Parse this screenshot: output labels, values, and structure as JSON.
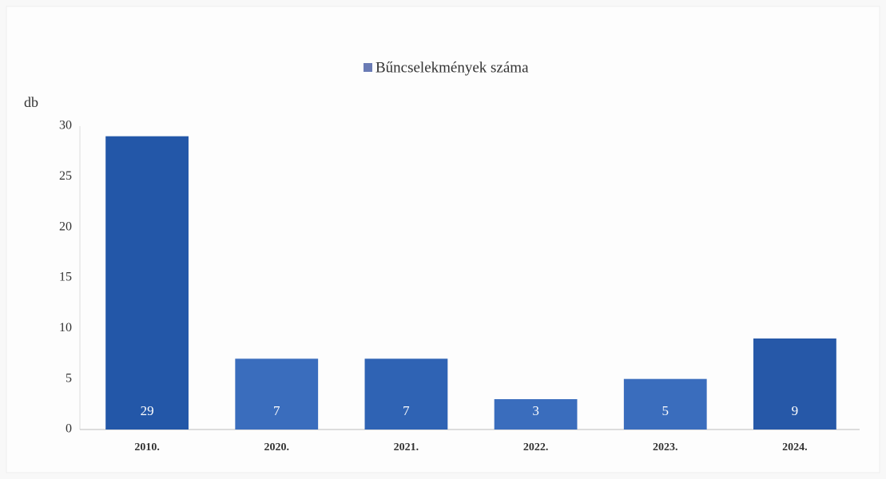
{
  "chart_data": {
    "type": "bar",
    "y_label": "db",
    "categories": [
      "2010.",
      "2020.",
      "2021.",
      "2022.",
      "2023.",
      "2024."
    ],
    "series": [
      {
        "name": "Bűncselekmények száma",
        "color": "#6a7bb5",
        "values": [
          29,
          7,
          7,
          3,
          5,
          9
        ],
        "point_colors": [
          "#2357a8",
          "#3a6dbd",
          "#2f63b4",
          "#3a6dbd",
          "#3a6dbd",
          "#2658a8"
        ]
      }
    ],
    "ylim": [
      0,
      30
    ],
    "yticks": [
      0,
      5,
      10,
      15,
      20,
      25,
      30
    ],
    "grid": false,
    "legend": "top"
  }
}
